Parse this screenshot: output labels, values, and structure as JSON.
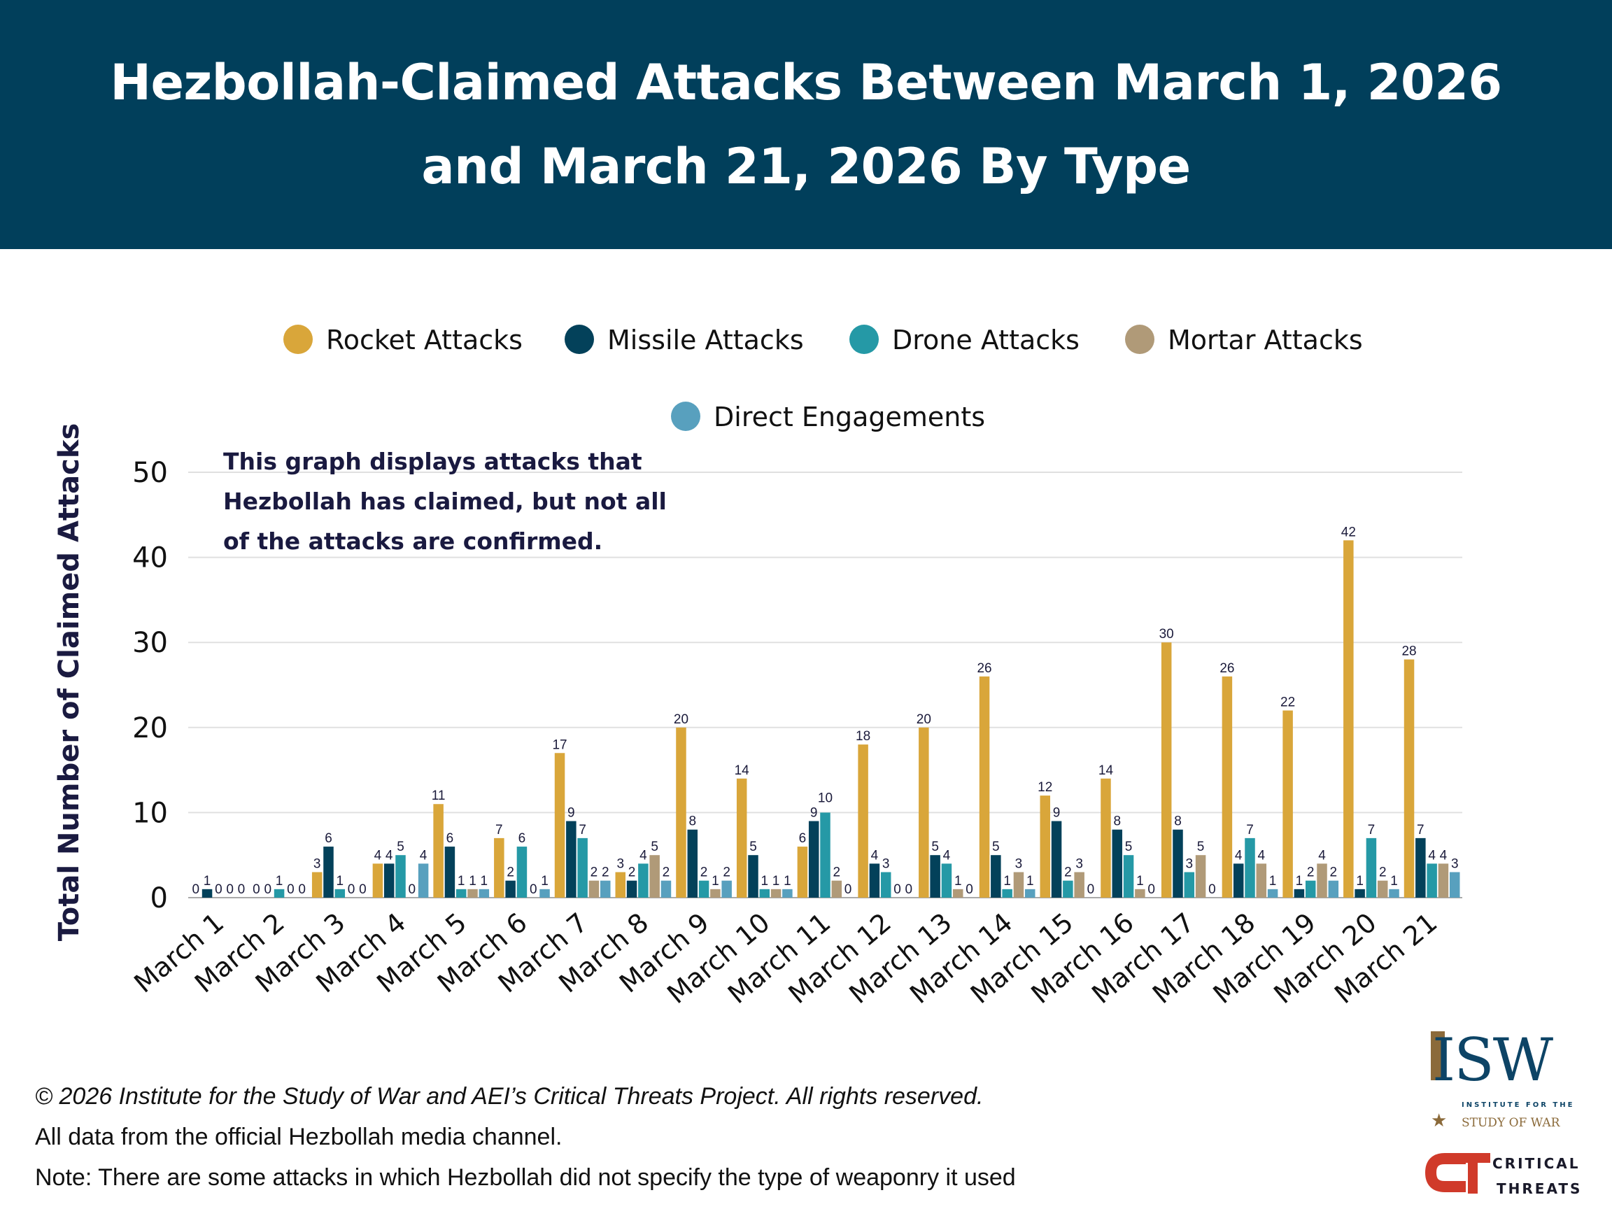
{
  "header": {
    "title_line1": "Hezbollah-Claimed Attacks Between March 1, 2026",
    "title_line2": "and March 21, 2026 By Type"
  },
  "annotation": {
    "line1": "This graph displays attacks that",
    "line2": "Hezbollah has claimed, but not all",
    "line3": "of the attacks are confirmed."
  },
  "footer": {
    "copyright": "© 2026 Institute for the Study of War and AEI’s Critical Threats Project. All rights reserved.",
    "source": "All data from the official Hezbollah media channel.",
    "note": "Note: There are some attacks in which Hezbollah did not specify the type of weaponry it used"
  },
  "logos": {
    "isw": "ISW",
    "isw_sub1": "INSTITUTE FOR THE",
    "isw_sub2": "STUDY OF WAR",
    "ct1": "CRITICAL",
    "ct2": "THREATS"
  },
  "chart_data": {
    "type": "bar",
    "title": "Hezbollah-Claimed Attacks Between March 1, 2026 and March 21, 2026 By Type",
    "xlabel": "",
    "ylabel": "Total Number of Claimed Attacks",
    "ylim": [
      0,
      50
    ],
    "yticks": [
      0,
      10,
      20,
      30,
      40,
      50
    ],
    "grid": true,
    "legend_position": "top",
    "categories": [
      "March 1",
      "March 2",
      "March 3",
      "March 4",
      "March 5",
      "March 6",
      "March 7",
      "March 8",
      "March 9",
      "March 10",
      "March 11",
      "March 12",
      "March 13",
      "March 14",
      "March 15",
      "March 16",
      "March 17",
      "March 18",
      "March 19",
      "March 20",
      "March 21"
    ],
    "series": [
      {
        "name": "Rocket Attacks",
        "color": "#D9A63A",
        "values": [
          0,
          0,
          3,
          4,
          11,
          7,
          17,
          3,
          20,
          14,
          6,
          18,
          20,
          26,
          12,
          14,
          30,
          26,
          22,
          42,
          28
        ]
      },
      {
        "name": "Missile Attacks",
        "color": "#03415A",
        "values": [
          1,
          0,
          6,
          4,
          6,
          2,
          9,
          2,
          8,
          5,
          9,
          4,
          5,
          5,
          9,
          8,
          8,
          4,
          1,
          1,
          7
        ]
      },
      {
        "name": "Drone Attacks",
        "color": "#2599A6",
        "values": [
          0,
          1,
          1,
          5,
          1,
          6,
          7,
          4,
          2,
          1,
          10,
          3,
          4,
          1,
          2,
          5,
          3,
          7,
          2,
          7,
          4
        ]
      },
      {
        "name": "Mortar Attacks",
        "color": "#B09A78",
        "values": [
          0,
          0,
          0,
          0,
          1,
          0,
          2,
          5,
          1,
          1,
          2,
          0,
          1,
          3,
          3,
          1,
          5,
          4,
          4,
          2,
          4
        ]
      },
      {
        "name": "Direct Engagements",
        "color": "#58A0BE",
        "values": [
          0,
          0,
          0,
          4,
          1,
          1,
          2,
          2,
          2,
          1,
          0,
          0,
          0,
          1,
          0,
          0,
          0,
          1,
          2,
          1,
          3
        ]
      }
    ]
  }
}
